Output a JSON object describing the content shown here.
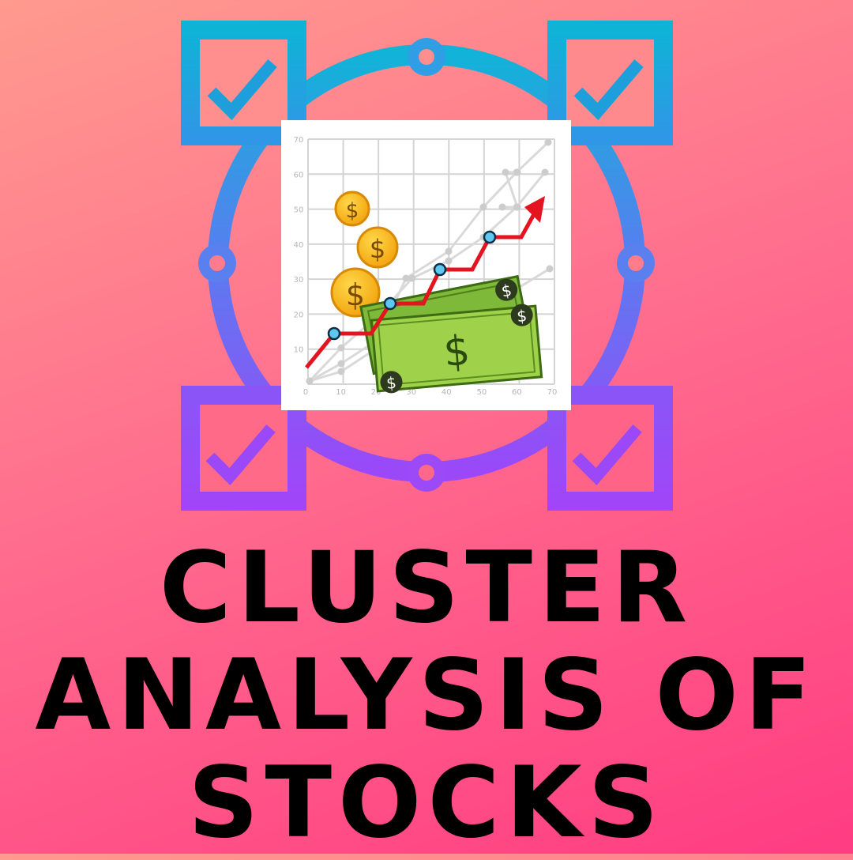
{
  "title": {
    "lines": [
      "CLUSTER",
      "ANALYSIS OF",
      "STOCKS"
    ]
  },
  "illustration": {
    "icons": [
      "checkmark-icon",
      "dollar-coin-icon",
      "dollar-bill-icon",
      "trend-arrow-icon"
    ],
    "frame_gradient": [
      "#12b3d8",
      "#9a48f8"
    ],
    "chart": {
      "x_ticks": [
        "0",
        "10",
        "20",
        "30",
        "40",
        "50",
        "60",
        "70"
      ],
      "y_ticks": [
        "70",
        "60",
        "50",
        "40",
        "30",
        "20",
        "10"
      ],
      "currency_symbol": "$"
    }
  }
}
